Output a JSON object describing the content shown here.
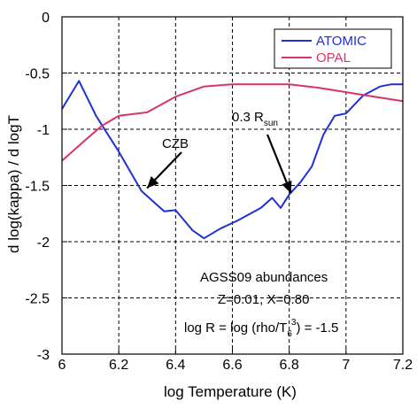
{
  "chart_data": {
    "type": "line",
    "xlabel": "log Temperature (K)",
    "ylabel": "d log(kappa) / d logT",
    "xlim": [
      6,
      7.2
    ],
    "ylim": [
      -3,
      0
    ],
    "xticks": [
      "6",
      "6.2",
      "6.4",
      "6.6",
      "6.8",
      "7",
      "7.2"
    ],
    "yticks": [
      "0",
      "-0.5",
      "-1",
      "-1.5",
      "-2",
      "-2.5",
      "-3"
    ],
    "grid": "dashed",
    "legend_position": "top-right",
    "series": [
      {
        "name": "ATOMIC",
        "color": "#1f2fd6",
        "points": [
          [
            6.0,
            -0.82
          ],
          [
            6.06,
            -0.57
          ],
          [
            6.12,
            -0.88
          ],
          [
            6.2,
            -1.2
          ],
          [
            6.28,
            -1.55
          ],
          [
            6.36,
            -1.73
          ],
          [
            6.4,
            -1.72
          ],
          [
            6.46,
            -1.9
          ],
          [
            6.5,
            -1.97
          ],
          [
            6.56,
            -1.88
          ],
          [
            6.62,
            -1.81
          ],
          [
            6.7,
            -1.7
          ],
          [
            6.74,
            -1.61
          ],
          [
            6.77,
            -1.7
          ],
          [
            6.8,
            -1.58
          ],
          [
            6.84,
            -1.47
          ],
          [
            6.88,
            -1.33
          ],
          [
            6.92,
            -1.05
          ],
          [
            6.96,
            -0.88
          ],
          [
            7.0,
            -0.86
          ],
          [
            7.06,
            -0.7
          ],
          [
            7.12,
            -0.62
          ],
          [
            7.16,
            -0.6
          ],
          [
            7.2,
            -0.6
          ]
        ]
      },
      {
        "name": "OPAL",
        "color": "#d8336b",
        "points": [
          [
            6.0,
            -1.28
          ],
          [
            6.08,
            -1.1
          ],
          [
            6.14,
            -0.97
          ],
          [
            6.2,
            -0.88
          ],
          [
            6.3,
            -0.85
          ],
          [
            6.4,
            -0.71
          ],
          [
            6.5,
            -0.62
          ],
          [
            6.6,
            -0.6
          ],
          [
            6.7,
            -0.6
          ],
          [
            6.8,
            -0.6
          ],
          [
            6.9,
            -0.63
          ],
          [
            7.0,
            -0.67
          ],
          [
            7.1,
            -0.71
          ],
          [
            7.2,
            -0.75
          ]
        ]
      }
    ],
    "annotations": {
      "czb": {
        "text": "CZB",
        "arrow_to": [
          6.29,
          -1.5
        ]
      },
      "rsun": {
        "prefix": "0.3 R",
        "sub": "sun",
        "arrow_to": [
          6.8,
          -1.6
        ]
      },
      "abundances": "AGSS09 abundances",
      "composition": "Z=0.01, X=0.80",
      "logr_a": "log R = log (rho/T",
      "logr_sub": "6",
      "logr_sup": "3",
      "logr_b": ") = -1.5"
    }
  }
}
